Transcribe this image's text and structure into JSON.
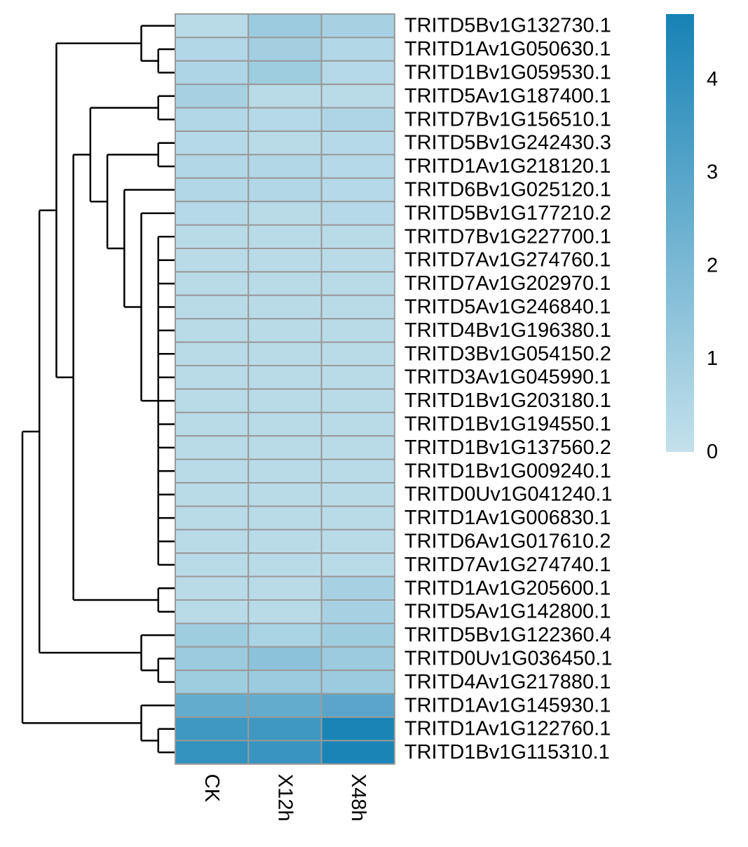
{
  "chart_data": {
    "type": "heatmap",
    "title": "",
    "columns": [
      "CK",
      "X12h",
      "X48h"
    ],
    "rows": [
      {
        "name": "TRITD5Bv1G132730.1",
        "values": [
          0.3,
          1.1,
          0.8
        ]
      },
      {
        "name": "TRITD1Av1G050630.1",
        "values": [
          0.5,
          0.9,
          0.5
        ]
      },
      {
        "name": "TRITD1Bv1G059530.1",
        "values": [
          0.6,
          1.0,
          0.4
        ]
      },
      {
        "name": "TRITD5Av1G187400.1",
        "values": [
          0.8,
          0.3,
          0.3
        ]
      },
      {
        "name": "TRITD7Bv1G156510.1",
        "values": [
          0.5,
          0.4,
          0.6
        ]
      },
      {
        "name": "TRITD5Bv1G242430.3",
        "values": [
          0.4,
          0.3,
          0.4
        ]
      },
      {
        "name": "TRITD1Av1G218120.1",
        "values": [
          0.5,
          0.5,
          0.4
        ]
      },
      {
        "name": "TRITD6Bv1G025120.1",
        "values": [
          0.5,
          0.5,
          0.4
        ]
      },
      {
        "name": "TRITD5Bv1G177210.2",
        "values": [
          0.4,
          0.3,
          0.4
        ]
      },
      {
        "name": "TRITD7Bv1G227700.1",
        "values": [
          0.3,
          0.3,
          0.3
        ]
      },
      {
        "name": "TRITD7Av1G274760.1",
        "values": [
          0.3,
          0.3,
          0.3
        ]
      },
      {
        "name": "TRITD7Av1G202970.1",
        "values": [
          0.3,
          0.3,
          0.3
        ]
      },
      {
        "name": "TRITD5Av1G246840.1",
        "values": [
          0.3,
          0.3,
          0.3
        ]
      },
      {
        "name": "TRITD4Bv1G196380.1",
        "values": [
          0.3,
          0.3,
          0.3
        ]
      },
      {
        "name": "TRITD3Bv1G054150.2",
        "values": [
          0.3,
          0.3,
          0.3
        ]
      },
      {
        "name": "TRITD3Av1G045990.1",
        "values": [
          0.3,
          0.3,
          0.3
        ]
      },
      {
        "name": "TRITD1Bv1G203180.1",
        "values": [
          0.3,
          0.3,
          0.3
        ]
      },
      {
        "name": "TRITD1Bv1G194550.1",
        "values": [
          0.3,
          0.3,
          0.3
        ]
      },
      {
        "name": "TRITD1Bv1G137560.2",
        "values": [
          0.3,
          0.3,
          0.3
        ]
      },
      {
        "name": "TRITD1Bv1G009240.1",
        "values": [
          0.3,
          0.3,
          0.3
        ]
      },
      {
        "name": "TRITD0Uv1G041240.1",
        "values": [
          0.3,
          0.3,
          0.3
        ]
      },
      {
        "name": "TRITD1Av1G006830.1",
        "values": [
          0.3,
          0.3,
          0.3
        ]
      },
      {
        "name": "TRITD6Av1G017610.2",
        "values": [
          0.3,
          0.3,
          0.3
        ]
      },
      {
        "name": "TRITD7Av1G274740.1",
        "values": [
          0.3,
          0.3,
          0.3
        ]
      },
      {
        "name": "TRITD1Av1G205600.1",
        "values": [
          0.3,
          0.3,
          0.8
        ]
      },
      {
        "name": "TRITD5Av1G142800.1",
        "values": [
          0.3,
          0.3,
          0.8
        ]
      },
      {
        "name": "TRITD5Bv1G122360.4",
        "values": [
          1.0,
          0.7,
          1.0
        ]
      },
      {
        "name": "TRITD0Uv1G036450.1",
        "values": [
          1.1,
          1.5,
          1.1
        ]
      },
      {
        "name": "TRITD4Av1G217880.1",
        "values": [
          1.0,
          1.1,
          1.1
        ]
      },
      {
        "name": "TRITD1Av1G145930.1",
        "values": [
          2.6,
          2.6,
          2.9
        ]
      },
      {
        "name": "TRITD1Av1G122760.1",
        "values": [
          3.6,
          3.6,
          4.6
        ]
      },
      {
        "name": "TRITD1Bv1G115310.1",
        "values": [
          3.9,
          3.8,
          4.6
        ]
      }
    ],
    "color_scale": {
      "min": 0,
      "max": 4.7,
      "low_color": "#c4e1ec",
      "high_color": "#1782b5",
      "ticks": [
        0,
        1,
        2,
        3,
        4
      ]
    },
    "cell_border_color": "#999999",
    "legend_placement": "top-right",
    "dendrogram": "rows",
    "row_tree": {
      "children": [
        {
          "children": [
            {
              "children": [
                {
                  "children": [
                    {
                      "leaf": 0
                    },
                    {
                      "children": [
                        {
                          "leaf": 1
                        },
                        {
                          "leaf": 2
                        }
                      ]
                    }
                  ]
                },
                {
                  "children": [
                    {
                      "children": [
                        {
                          "children": [
                            {
                              "leaf": 3
                            },
                            {
                              "leaf": 4
                            }
                          ]
                        },
                        {
                          "children": [
                            {
                              "children": [
                                {
                                  "leaf": 5
                                },
                                {
                                  "leaf": 6
                                }
                              ]
                            },
                            {
                              "children": [
                                {
                                  "leaf": 7
                                },
                                {
                                  "children": [
                                    {
                                      "leaf": 8
                                    },
                                    {
                                      "children": [
                                        {
                                          "leaf": 9
                                        },
                                        {
                                          "leaf": 10
                                        },
                                        {
                                          "leaf": 11
                                        },
                                        {
                                          "leaf": 12
                                        },
                                        {
                                          "leaf": 13
                                        },
                                        {
                                          "leaf": 14
                                        },
                                        {
                                          "leaf": 15
                                        },
                                        {
                                          "leaf": 16
                                        },
                                        {
                                          "leaf": 17
                                        },
                                        {
                                          "leaf": 18
                                        },
                                        {
                                          "leaf": 19
                                        },
                                        {
                                          "leaf": 20
                                        },
                                        {
                                          "leaf": 21
                                        },
                                        {
                                          "leaf": 22
                                        },
                                        {
                                          "leaf": 23
                                        }
                                      ]
                                    }
                                  ]
                                }
                              ]
                            }
                          ]
                        }
                      ]
                    },
                    {
                      "children": [
                        {
                          "leaf": 24
                        },
                        {
                          "leaf": 25
                        }
                      ]
                    }
                  ]
                }
              ]
            },
            {
              "children": [
                {
                  "leaf": 26
                },
                {
                  "children": [
                    {
                      "leaf": 27
                    },
                    {
                      "leaf": 28
                    }
                  ]
                }
              ]
            }
          ]
        },
        {
          "children": [
            {
              "leaf": 29
            },
            {
              "children": [
                {
                  "leaf": 30
                },
                {
                  "leaf": 31
                }
              ]
            }
          ]
        }
      ]
    }
  }
}
